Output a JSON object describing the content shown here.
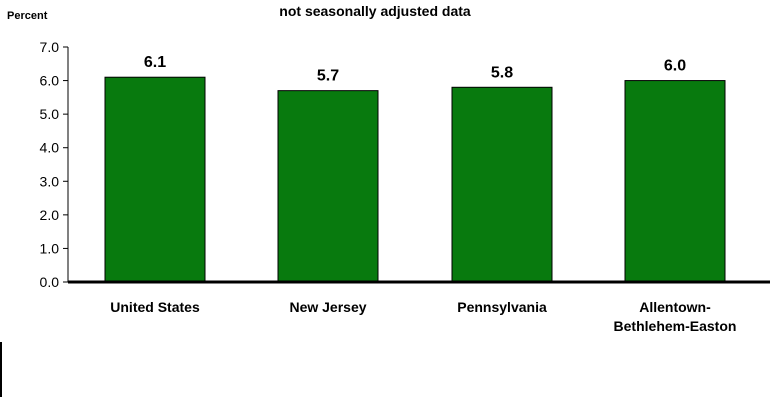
{
  "chart_data": {
    "type": "bar",
    "title": "",
    "subtitle": "not seasonally adjusted data",
    "ylabel": "Percent",
    "xlabel": "",
    "ylim": [
      0,
      7
    ],
    "yticks": [
      "0.0",
      "1.0",
      "2.0",
      "3.0",
      "4.0",
      "5.0",
      "6.0",
      "7.0"
    ],
    "categories": [
      [
        "United States"
      ],
      [
        "New Jersey"
      ],
      [
        "Pennsylvania"
      ],
      [
        "Allentown-",
        "Bethlehem-Easton"
      ]
    ],
    "values": [
      6.1,
      5.7,
      5.8,
      6.0
    ],
    "value_labels": [
      "6.1",
      "5.7",
      "5.8",
      "6.0"
    ],
    "bar_color": "#087a0e",
    "bar_edge_color": "#000000",
    "grid": false,
    "legend": "none"
  }
}
